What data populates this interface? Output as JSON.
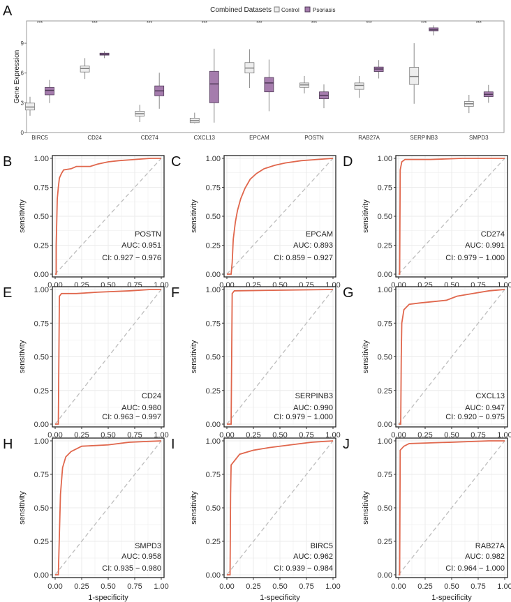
{
  "chart_data": [
    {
      "panel": "A",
      "type": "box",
      "legend": {
        "title": "Combined Datasets",
        "entries": [
          "Control",
          "Psoriasis"
        ],
        "placement": "top"
      },
      "ylabel": "Gene Expression",
      "yticks": [
        "0",
        "3",
        "6",
        "9"
      ],
      "ytick_values": [
        0,
        3,
        6,
        9
      ],
      "ylim": [
        0,
        11.3
      ],
      "significance": "***",
      "colors": {
        "Control": "#eeeeee",
        "Psoriasis": "#a57cad",
        "Control_line": "#7f7f7f",
        "Psoriasis_line": "#503a58"
      },
      "categories": [
        "BIRC5",
        "CD24",
        "CD274",
        "CXCL13",
        "EPCAM",
        "POSTN",
        "RAB27A",
        "SERPINB3",
        "SMPD3"
      ],
      "series": [
        {
          "name": "Control",
          "stats": [
            [
              1.7,
              2.27,
              2.57,
              2.97,
              3.6
            ],
            [
              5.4,
              6.1,
              6.45,
              6.7,
              7.5
            ],
            [
              1.05,
              1.66,
              1.9,
              2.15,
              2.8
            ],
            [
              0.93,
              1.0,
              1.2,
              1.45,
              2.0
            ],
            [
              4.5,
              6.0,
              6.5,
              7.05,
              8.4
            ],
            [
              3.95,
              4.55,
              4.8,
              5.0,
              5.7
            ],
            [
              3.5,
              4.35,
              4.75,
              5.0,
              5.7
            ],
            [
              2.9,
              4.84,
              5.65,
              6.57,
              9.0
            ],
            [
              1.96,
              2.64,
              2.9,
              3.13,
              3.8
            ]
          ]
        },
        {
          "name": "Psoriasis",
          "stats": [
            [
              2.97,
              3.8,
              4.25,
              4.55,
              5.3
            ],
            [
              7.5,
              7.8,
              7.9,
              8.0,
              8.2
            ],
            [
              2.4,
              3.7,
              4.2,
              4.7,
              6.03
            ],
            [
              1.0,
              3.0,
              4.9,
              6.17,
              8.45
            ],
            [
              2.15,
              4.1,
              5.0,
              5.55,
              7.35
            ],
            [
              2.45,
              3.4,
              3.75,
              4.1,
              4.85
            ],
            [
              5.45,
              6.15,
              6.4,
              6.6,
              7.3
            ],
            [
              9.8,
              10.25,
              10.35,
              10.55,
              10.8
            ],
            [
              3.0,
              3.62,
              3.85,
              4.1,
              4.8
            ]
          ]
        }
      ]
    },
    {
      "type": "line",
      "subtype": "roc",
      "xlabel": "1-specificity",
      "ylabel": "sensitivity",
      "xlim": [
        0,
        1
      ],
      "ylim": [
        0,
        1
      ],
      "ticks": [
        "0.00",
        "0.25",
        "0.50",
        "0.75",
        "1.00"
      ],
      "tick_values": [
        0,
        0.25,
        0.5,
        0.75,
        1
      ],
      "curve_color": "#e0674d",
      "diagonal_color": "#bdbdbd",
      "panels": [
        {
          "letter": "B",
          "gene": "POSTN",
          "auc": "AUC: 0.951",
          "ci": "CI: 0.927 − 0.976",
          "points": [
            [
              0,
              0
            ],
            [
              0.01,
              0
            ],
            [
              0.01,
              0.25
            ],
            [
              0.02,
              0.65
            ],
            [
              0.03,
              0.75
            ],
            [
              0.04,
              0.83
            ],
            [
              0.06,
              0.87
            ],
            [
              0.08,
              0.9
            ],
            [
              0.15,
              0.91
            ],
            [
              0.2,
              0.93
            ],
            [
              0.33,
              0.93
            ],
            [
              0.4,
              0.95
            ],
            [
              0.5,
              0.97
            ],
            [
              0.6,
              0.98
            ],
            [
              0.75,
              0.99
            ],
            [
              0.9,
              1
            ],
            [
              1,
              1
            ]
          ]
        },
        {
          "letter": "C",
          "gene": "EPCAM",
          "auc": "AUC: 0.893",
          "ci": "CI: 0.859 − 0.927",
          "points": [
            [
              0,
              0
            ],
            [
              0.04,
              0
            ],
            [
              0.05,
              0.1
            ],
            [
              0.06,
              0.3
            ],
            [
              0.08,
              0.45
            ],
            [
              0.1,
              0.55
            ],
            [
              0.13,
              0.65
            ],
            [
              0.17,
              0.74
            ],
            [
              0.22,
              0.82
            ],
            [
              0.28,
              0.87
            ],
            [
              0.35,
              0.91
            ],
            [
              0.45,
              0.94
            ],
            [
              0.55,
              0.96
            ],
            [
              0.7,
              0.98
            ],
            [
              0.85,
              0.99
            ],
            [
              1,
              1
            ]
          ]
        },
        {
          "letter": "D",
          "gene": "CD274",
          "auc": "AUC: 0.991",
          "ci": "CI: 0.979 − 1.000",
          "points": [
            [
              0,
              0
            ],
            [
              0.01,
              0
            ],
            [
              0.015,
              0.9
            ],
            [
              0.03,
              0.97
            ],
            [
              0.06,
              0.99
            ],
            [
              0.3,
              0.99
            ],
            [
              0.6,
              1
            ],
            [
              1,
              1
            ]
          ]
        },
        {
          "letter": "E",
          "gene": "CD24",
          "auc": "AUC: 0.980",
          "ci": "CI: 0.963 − 0.997",
          "points": [
            [
              0,
              0
            ],
            [
              0.03,
              0
            ],
            [
              0.04,
              0.95
            ],
            [
              0.06,
              0.97
            ],
            [
              0.2,
              0.97
            ],
            [
              0.4,
              0.98
            ],
            [
              0.7,
              0.99
            ],
            [
              0.9,
              1
            ],
            [
              1,
              1
            ]
          ]
        },
        {
          "letter": "F",
          "gene": "SERPINB3",
          "auc": "AUC: 0.990",
          "ci": "CI: 0.979 − 1.000",
          "points": [
            [
              0,
              0
            ],
            [
              0.04,
              0
            ],
            [
              0.05,
              0.97
            ],
            [
              0.07,
              0.99
            ],
            [
              0.5,
              0.995
            ],
            [
              1,
              1
            ]
          ]
        },
        {
          "letter": "G",
          "gene": "CXCL13",
          "auc": "AUC: 0.947",
          "ci": "CI: 0.920 − 0.975",
          "points": [
            [
              0,
              0
            ],
            [
              0.02,
              0
            ],
            [
              0.025,
              0.5
            ],
            [
              0.03,
              0.75
            ],
            [
              0.05,
              0.85
            ],
            [
              0.1,
              0.89
            ],
            [
              0.2,
              0.9
            ],
            [
              0.45,
              0.92
            ],
            [
              0.55,
              0.95
            ],
            [
              0.7,
              0.97
            ],
            [
              0.85,
              0.99
            ],
            [
              1,
              1
            ]
          ]
        },
        {
          "letter": "H",
          "gene": "SMPD3",
          "auc": "AUC: 0.958",
          "ci": "CI: 0.935 − 0.980",
          "points": [
            [
              0,
              0
            ],
            [
              0.03,
              0
            ],
            [
              0.04,
              0.3
            ],
            [
              0.05,
              0.6
            ],
            [
              0.07,
              0.8
            ],
            [
              0.1,
              0.88
            ],
            [
              0.15,
              0.92
            ],
            [
              0.25,
              0.96
            ],
            [
              0.5,
              0.97
            ],
            [
              0.7,
              0.99
            ],
            [
              1,
              1
            ]
          ]
        },
        {
          "letter": "I",
          "gene": "BIRC5",
          "auc": "AUC: 0.962",
          "ci": "CI: 0.939 − 0.984",
          "points": [
            [
              0,
              0
            ],
            [
              0.03,
              0
            ],
            [
              0.035,
              0.6
            ],
            [
              0.04,
              0.82
            ],
            [
              0.08,
              0.86
            ],
            [
              0.12,
              0.9
            ],
            [
              0.25,
              0.93
            ],
            [
              0.4,
              0.95
            ],
            [
              0.6,
              0.97
            ],
            [
              0.8,
              0.99
            ],
            [
              1,
              1
            ]
          ]
        },
        {
          "letter": "J",
          "gene": "RAB27A",
          "auc": "AUC: 0.982",
          "ci": "CI: 0.964 − 1.000",
          "points": [
            [
              0,
              0
            ],
            [
              0.01,
              0
            ],
            [
              0.015,
              0.93
            ],
            [
              0.05,
              0.96
            ],
            [
              0.1,
              0.98
            ],
            [
              0.5,
              0.99
            ],
            [
              0.85,
              1
            ],
            [
              1,
              1
            ]
          ]
        }
      ]
    }
  ],
  "panel_a_letter": "A"
}
